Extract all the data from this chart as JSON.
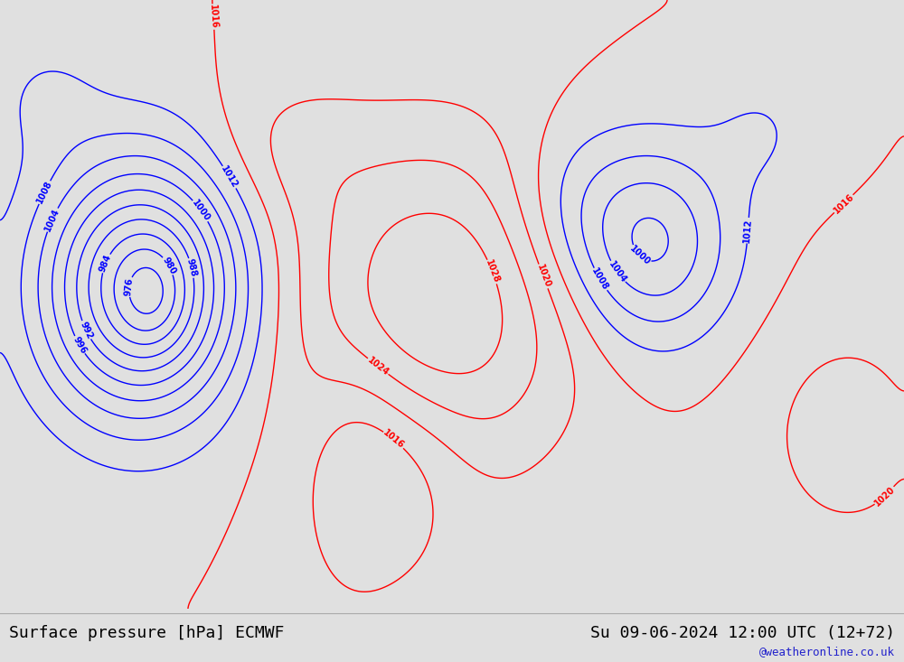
{
  "title_left": "Surface pressure [hPa] ECMWF",
  "title_right": "Su 09-06-2024 12:00 UTC (12+72)",
  "watermark": "@weatheronline.co.uk",
  "bg_color": "#e0e0e0",
  "land_color": "#c8e8a8",
  "mountain_color": "#a8a8a8",
  "contour_colors": {
    "below_1013": "#0000ff",
    "at_1013": "#000000",
    "above_1013": "#ff0000"
  },
  "font_size_title": 13,
  "font_size_labels": 7,
  "extent": [
    -180,
    -20,
    15,
    85
  ]
}
